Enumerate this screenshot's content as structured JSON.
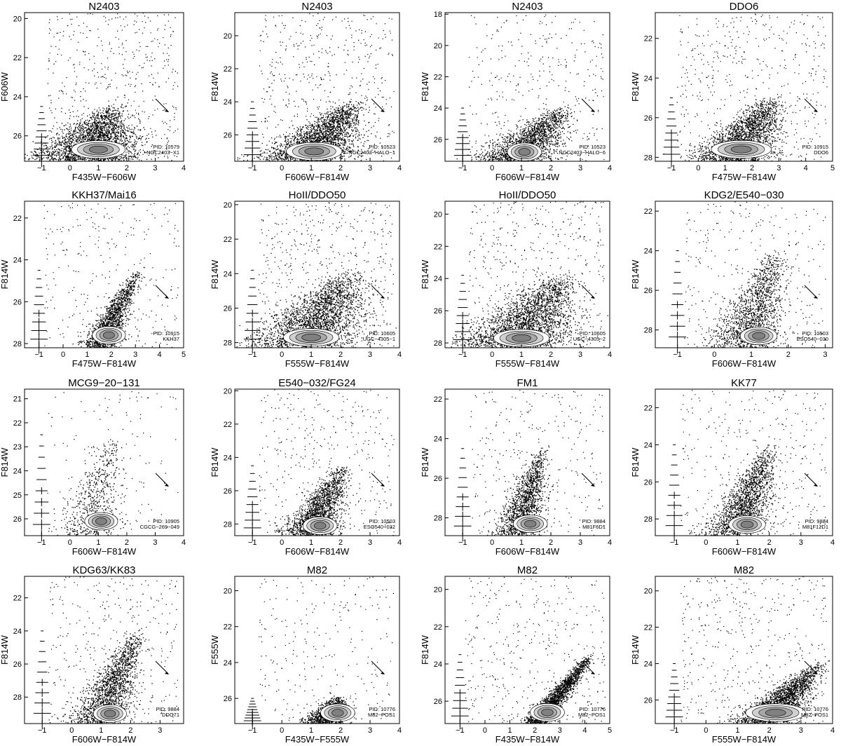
{
  "figure": {
    "ticks": {
      "c_m1_4": [
        "-1",
        "0",
        "1",
        "2",
        "3",
        "4"
      ],
      "c_m1_5": [
        "-1",
        "0",
        "1",
        "2",
        "3",
        "4",
        "5"
      ],
      "c_m1_3": [
        "-1",
        "0",
        "1",
        "2",
        "3"
      ],
      "c_m1_5_5": [
        "-1",
        "0",
        "1",
        "2",
        "3",
        "4",
        "5"
      ]
    }
  },
  "chart_data": [
    {
      "type": "scatter",
      "title": "N2403",
      "xlabel": "F435W−F606W",
      "ylabel": "F606W",
      "xlim": [
        -1.6,
        4
      ],
      "ylim": [
        27.3,
        19.7
      ],
      "xticks": [
        -1,
        0,
        1,
        2,
        3,
        4
      ],
      "yticks": [
        20,
        22,
        24,
        26
      ],
      "pid": [
        "PID: 10579",
        "NGC2403−X1"
      ]
    },
    {
      "type": "scatter",
      "title": "N2403",
      "xlabel": "F606W−F814W",
      "ylabel": "F814W",
      "xlim": [
        -1.6,
        4
      ],
      "ylim": [
        27.6,
        18.6
      ],
      "xticks": [
        -1,
        0,
        1,
        2,
        3,
        4
      ],
      "yticks": [
        20,
        22,
        24,
        26
      ],
      "pid": [
        "PID: 10523",
        "NGC2403−HALO−1"
      ]
    },
    {
      "type": "scatter",
      "title": "N2403",
      "xlabel": "F606W−F814W",
      "ylabel": "F814W",
      "xlim": [
        -1.6,
        4
      ],
      "ylim": [
        27.4,
        17.9
      ],
      "xticks": [
        -1,
        0,
        1,
        2,
        3,
        4
      ],
      "yticks": [
        18,
        20,
        22,
        24,
        26
      ],
      "pid": [
        "PID: 10523",
        "NGC2403−HALO−6"
      ]
    },
    {
      "type": "scatter",
      "title": "DDO6",
      "xlabel": "F475W−F814W",
      "ylabel": "F814W",
      "xlim": [
        -1.6,
        5
      ],
      "ylim": [
        28.2,
        20.7
      ],
      "xticks": [
        -1,
        0,
        1,
        2,
        3,
        4,
        5
      ],
      "yticks": [
        22,
        24,
        26,
        28
      ],
      "pid": [
        "PID: 10915",
        "DDO6"
      ]
    },
    {
      "type": "scatter",
      "title": "KKH37/Mai16",
      "xlabel": "F475W−F814W",
      "ylabel": "F814W",
      "xlim": [
        -1.6,
        5
      ],
      "ylim": [
        28.2,
        21.2
      ],
      "xticks": [
        -1,
        0,
        1,
        2,
        3,
        4,
        5
      ],
      "yticks": [
        22,
        24,
        26,
        28
      ],
      "pid": [
        "PID: 10915",
        "KKH37"
      ]
    },
    {
      "type": "scatter",
      "title": "HoII/DDO50",
      "xlabel": "F555W−F814W",
      "ylabel": "F814W",
      "xlim": [
        -1.6,
        4
      ],
      "ylim": [
        28.3,
        19.8
      ],
      "xticks": [
        -1,
        0,
        1,
        2,
        3,
        4
      ],
      "yticks": [
        20,
        22,
        24,
        26,
        28
      ],
      "pid": [
        "PID: 10605",
        "UGC−4305−1"
      ]
    },
    {
      "type": "scatter",
      "title": "HoII/DDO50",
      "xlabel": "F555W−F814W",
      "ylabel": "F814W",
      "xlim": [
        -1.6,
        4
      ],
      "ylim": [
        28.3,
        19.2
      ],
      "xticks": [
        -1,
        0,
        1,
        2,
        3,
        4
      ],
      "yticks": [
        20,
        22,
        24,
        26,
        28
      ],
      "pid": [
        "PID: 10605",
        "UGC−4305−2"
      ]
    },
    {
      "type": "scatter",
      "title": "KDG2/E540−030",
      "xlabel": "F606W−F814W",
      "ylabel": "F814W",
      "xlim": [
        -1.6,
        3.2
      ],
      "ylim": [
        28.9,
        21.5
      ],
      "xticks": [
        -1,
        0,
        1,
        2,
        3
      ],
      "yticks": [
        22,
        24,
        26,
        28
      ],
      "pid": [
        "PID: 10503",
        "ESO540−030"
      ]
    },
    {
      "type": "scatter",
      "title": "MCG9−20−131",
      "xlabel": "F606W−F814W",
      "ylabel": "F814W",
      "xlim": [
        -1.6,
        4
      ],
      "ylim": [
        26.7,
        20.6
      ],
      "xticks": [
        -1,
        0,
        1,
        2,
        3,
        4
      ],
      "yticks": [
        21,
        22,
        23,
        24,
        25,
        26
      ],
      "pid": [
        "PID: 10905",
        "CGCG−269−049"
      ]
    },
    {
      "type": "scatter",
      "title": "E540−032/FG24",
      "xlabel": "F606W−F814W",
      "ylabel": "F814W",
      "xlim": [
        -1.6,
        4
      ],
      "ylim": [
        28.7,
        19.9
      ],
      "xticks": [
        -1,
        0,
        1,
        2,
        3,
        4
      ],
      "yticks": [
        20,
        22,
        24,
        26,
        28
      ],
      "pid": [
        "PID: 10503",
        "ESO540−032"
      ]
    },
    {
      "type": "scatter",
      "title": "FM1",
      "xlabel": "F606W−F814W",
      "ylabel": "F814W",
      "xlim": [
        -1.6,
        4
      ],
      "ylim": [
        28.9,
        21.5
      ],
      "xticks": [
        -1,
        0,
        1,
        2,
        3,
        4
      ],
      "yticks": [
        22,
        24,
        26,
        28
      ],
      "pid": [
        "PID: 9884",
        "M81F6D1"
      ]
    },
    {
      "type": "scatter",
      "title": "KK77",
      "xlabel": "F606W−F814W",
      "ylabel": "F814W",
      "xlim": [
        -1.6,
        4
      ],
      "ylim": [
        28.9,
        21.0
      ],
      "xticks": [
        -1,
        0,
        1,
        2,
        3,
        4
      ],
      "yticks": [
        22,
        24,
        26,
        28
      ],
      "pid": [
        "PID: 9884",
        "M81F12D1"
      ]
    },
    {
      "type": "scatter",
      "title": "KDG63/KK83",
      "xlabel": "F606W−F814W",
      "ylabel": "F814W",
      "xlim": [
        -1.6,
        3.8
      ],
      "ylim": [
        29.6,
        20.7
      ],
      "xticks": [
        -1,
        0,
        1,
        2,
        3
      ],
      "yticks": [
        22,
        24,
        26,
        28
      ],
      "pid": [
        "PID: 9884",
        "DDO71"
      ]
    },
    {
      "type": "scatter",
      "title": "M82",
      "xlabel": "F435W−F555W",
      "ylabel": "F555W",
      "xlim": [
        -1.6,
        4
      ],
      "ylim": [
        27.4,
        19.2
      ],
      "xticks": [
        -1,
        0,
        1,
        2,
        3,
        4
      ],
      "yticks": [
        20,
        22,
        24,
        26
      ],
      "pid": [
        "PID: 10776",
        "M82−POS1"
      ]
    },
    {
      "type": "scatter",
      "title": "M82",
      "xlabel": "F435W−F814W",
      "ylabel": "F814W",
      "xlim": [
        -1.6,
        5
      ],
      "ylim": [
        27.2,
        19.3
      ],
      "xticks": [
        -1,
        0,
        1,
        2,
        3,
        4,
        5
      ],
      "yticks": [
        20,
        22,
        24,
        26
      ],
      "pid": [
        "PID: 10776",
        "M82−POS1"
      ]
    },
    {
      "type": "scatter",
      "title": "M82",
      "xlabel": "F555W−F814W",
      "ylabel": "F814W",
      "xlim": [
        -1.6,
        4
      ],
      "ylim": [
        27.3,
        19.2
      ],
      "xticks": [
        -1,
        0,
        1,
        2,
        3,
        4
      ],
      "yticks": [
        20,
        22,
        24,
        26
      ],
      "pid": [
        "PID: 10776",
        "M82−POS1"
      ]
    }
  ]
}
